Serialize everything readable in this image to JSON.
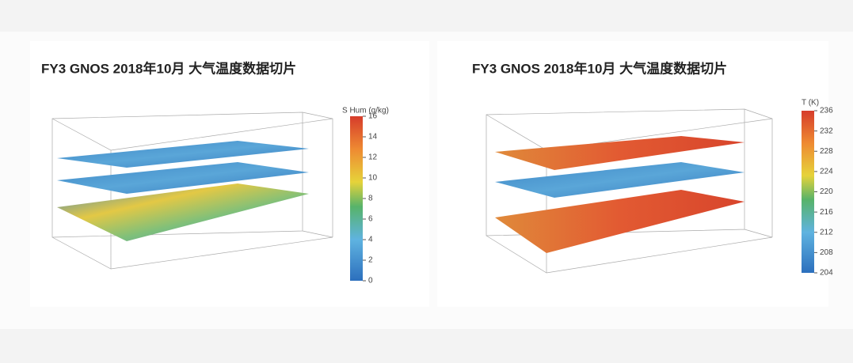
{
  "panels": [
    {
      "title": "FY3 GNOS 2018年10月 大气温度数据切片",
      "colorbar": {
        "label": "S Hum (g/kg)",
        "lim": [
          0,
          16
        ],
        "ticks": [
          0,
          2,
          4,
          6,
          8,
          10,
          12,
          14,
          16
        ]
      }
    },
    {
      "title": "FY3 GNOS 2018年10月 大气温度数据切片",
      "colorbar": {
        "label": "T (K)",
        "lim": [
          204,
          236
        ],
        "ticks": [
          204,
          208,
          212,
          216,
          220,
          224,
          228,
          232,
          236
        ]
      }
    }
  ]
}
